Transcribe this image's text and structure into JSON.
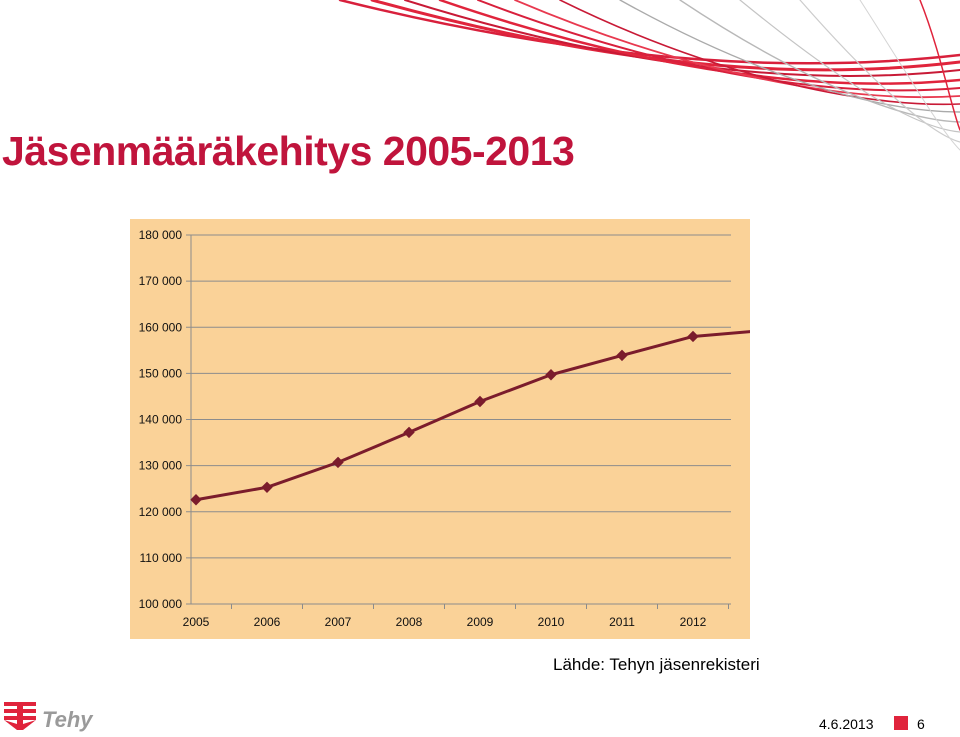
{
  "slide": {
    "title": "Jäsenmääräkehitys 2005-2013",
    "source": "Lähde: Tehyn jäsenrekisteri",
    "footer": {
      "logo_text": "Tehy",
      "date": "4.6.2013",
      "page_number": "6"
    },
    "colors": {
      "title": "#c0143c",
      "chart_background": "#fad298",
      "line": "#7b1c2c",
      "accent": "#e0243c"
    }
  },
  "chart_data": {
    "type": "line",
    "title": "",
    "xlabel": "",
    "ylabel": "",
    "x": [
      2005,
      2006,
      2007,
      2008,
      2009,
      2010,
      2011,
      2012,
      2013
    ],
    "x_tick_labels": [
      "2005",
      "2006",
      "2007",
      "2008",
      "2009",
      "2010",
      "2011",
      "2012"
    ],
    "series": [
      {
        "values": [
          122600,
          125300,
          130700,
          137200,
          143900,
          149700,
          153900,
          158000,
          159300
        ],
        "color": "#7b1c2c",
        "marker": "diamond"
      }
    ],
    "ylim": [
      100000,
      180000
    ],
    "y_ticks": [
      100000,
      110000,
      120000,
      130000,
      140000,
      150000,
      160000,
      170000,
      180000
    ],
    "y_tick_labels": [
      "100 000",
      "110 000",
      "120 000",
      "130 000",
      "140 000",
      "150 000",
      "160 000",
      "170 000",
      "180 000"
    ],
    "grid": true,
    "legend": "none"
  }
}
